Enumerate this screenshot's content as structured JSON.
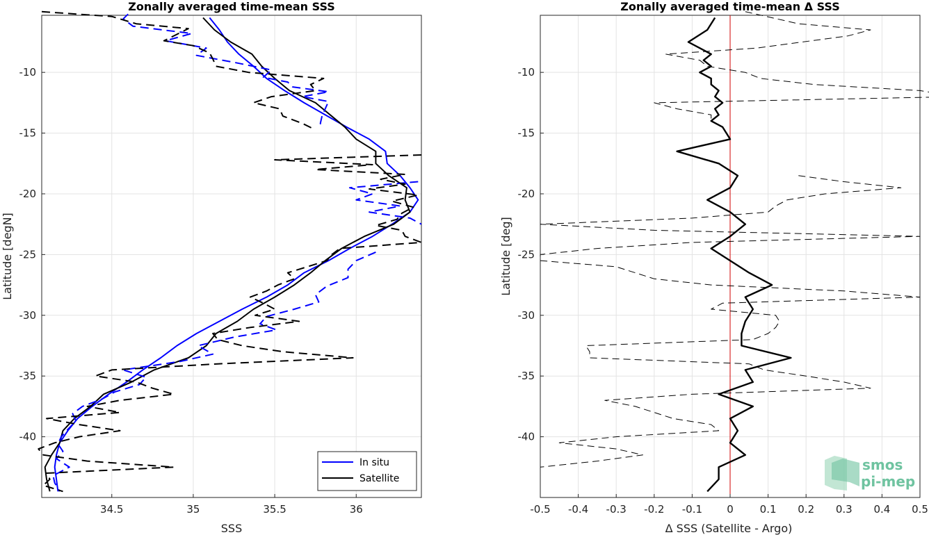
{
  "chart_data": [
    {
      "type": "line",
      "title": "Zonally averaged time-mean SSS",
      "xlabel": "SSS",
      "ylabel": "Latitude [degN]",
      "xlim": [
        34.07,
        36.4
      ],
      "ylim": [
        -45,
        -5.3
      ],
      "xticks": [
        34.5,
        35,
        35.5,
        36
      ],
      "xtick_labels": [
        "34.5",
        "35",
        "35.5",
        "36"
      ],
      "yticks": [
        -10,
        -15,
        -20,
        -25,
        -30,
        -35,
        -40
      ],
      "ytick_labels": [
        "-10",
        "-15",
        "-20",
        "-25",
        "-30",
        "-35",
        "-40"
      ],
      "grid": true,
      "legend": {
        "position": "bottom-right",
        "entries": [
          {
            "label": "In situ",
            "color": "#0000ff"
          },
          {
            "label": "Satellite",
            "color": "#000000"
          }
        ]
      },
      "series": [
        {
          "name": "In situ",
          "style": "solid",
          "color": "#0000ff",
          "lat": [
            -5.5,
            -6.5,
            -7.5,
            -8.5,
            -9.5,
            -10.5,
            -11.5,
            -12.5,
            -13.5,
            -14.5,
            -15.5,
            -16.5,
            -17.5,
            -18.5,
            -19.5,
            -20.5,
            -21.5,
            -22.5,
            -23.5,
            -24.5,
            -25.5,
            -26.5,
            -27.5,
            -28.5,
            -29.5,
            -30.5,
            -31.5,
            -32.5,
            -33.5,
            -34.5,
            -35.5,
            -36.5,
            -37.5,
            -38.5,
            -39.5,
            -40.5,
            -41.5,
            -42.5,
            -43.5,
            -44.5
          ],
          "values": [
            35.1,
            35.16,
            35.21,
            35.28,
            35.37,
            35.45,
            35.56,
            35.68,
            35.81,
            35.94,
            36.08,
            36.18,
            36.19,
            36.27,
            36.33,
            36.38,
            36.33,
            36.22,
            36.1,
            35.96,
            35.83,
            35.68,
            35.58,
            35.45,
            35.3,
            35.16,
            35.02,
            34.9,
            34.8,
            34.69,
            34.59,
            34.48,
            34.38,
            34.29,
            34.23,
            34.18,
            34.16,
            34.15,
            34.16,
            34.17
          ]
        },
        {
          "name": "Satellite",
          "style": "solid",
          "color": "#000000",
          "lat": [
            -5.5,
            -6.5,
            -7.5,
            -8.5,
            -9.5,
            -10.5,
            -11.5,
            -12.5,
            -13.5,
            -14.5,
            -15.5,
            -16.5,
            -17.5,
            -18.5,
            -19.5,
            -20.5,
            -21.5,
            -22.5,
            -23.5,
            -24.5,
            -25.5,
            -26.5,
            -27.5,
            -28.5,
            -29.5,
            -30.5,
            -31.5,
            -32.5,
            -33.5,
            -34.5,
            -35.5,
            -36.5,
            -37.5,
            -38.5,
            -39.5,
            -40.5,
            -41.5,
            -42.5,
            -43.5,
            -44.5
          ],
          "values": [
            35.06,
            35.13,
            35.23,
            35.36,
            35.42,
            35.5,
            35.59,
            35.75,
            35.84,
            35.93,
            36.0,
            36.12,
            36.12,
            36.2,
            36.31,
            36.3,
            36.33,
            36.23,
            36.05,
            35.91,
            35.81,
            35.72,
            35.62,
            35.5,
            35.37,
            35.27,
            35.14,
            35.08,
            34.97,
            34.76,
            34.62,
            34.45,
            34.37,
            34.27,
            34.2,
            34.18,
            34.13,
            34.09,
            34.1,
            34.12
          ]
        },
        {
          "name": "In situ (dashed)",
          "style": "dashed",
          "color": "#0000ff",
          "lat": [
            -5.2,
            -5.6,
            -6.2,
            -6.8,
            -7.4,
            -8.0,
            -8.6,
            -9.2,
            -9.8,
            -10.4,
            -10.8,
            -11.2,
            -11.6,
            -12.0,
            -12.4,
            -13.0,
            -13.6,
            -14.2,
            -14.6
          ],
          "values": [
            34.6,
            34.57,
            34.63,
            34.99,
            34.83,
            35.08,
            35.02,
            35.26,
            35.48,
            35.43,
            35.58,
            35.61,
            35.83,
            35.67,
            35.83,
            35.81,
            35.79,
            35.78,
            35.79
          ]
        },
        {
          "name": "In situ (dashed)",
          "style": "dashed",
          "color": "#0000ff",
          "lat": [
            -19.0,
            -19.5,
            -20.0,
            -20.5,
            -21.0,
            -21.5,
            -22.0,
            -22.5
          ],
          "values": [
            36.38,
            35.96,
            36.1,
            36.0,
            36.27,
            36.08,
            36.33,
            36.4
          ]
        },
        {
          "name": "In situ (dashed)",
          "style": "dashed",
          "color": "#0000ff",
          "lat": [
            -24.8,
            -25.5,
            -26.2,
            -26.9,
            -27.6,
            -28.3,
            -28.9,
            -29.5,
            -30.1,
            -30.7,
            -31.2,
            -31.8,
            -32.5,
            -33.2,
            -33.8,
            -34.5,
            -35.1,
            -35.7,
            -36.3,
            -36.9,
            -37.5,
            -38.1,
            -38.7,
            -39.4,
            -40.0,
            -40.6,
            -41.2,
            -41.8,
            -42.5,
            -43.2,
            -43.8,
            -44.5
          ],
          "values": [
            36.12,
            36.0,
            35.95,
            35.95,
            35.82,
            35.75,
            35.77,
            35.62,
            35.45,
            35.41,
            35.51,
            35.25,
            35.03,
            35.12,
            34.92,
            34.57,
            34.71,
            34.67,
            34.52,
            34.44,
            34.32,
            34.26,
            34.28,
            34.23,
            34.19,
            34.17,
            34.2,
            34.16,
            34.24,
            34.14,
            34.15,
            34.18
          ]
        },
        {
          "name": "Satellite (dashed)",
          "style": "dashed",
          "color": "#000000",
          "lat": [
            -5.0,
            -5.4,
            -6.0,
            -6.4,
            -6.8,
            -7.4,
            -7.8,
            -8.4,
            -8.9,
            -9.5,
            -10.0,
            -10.5,
            -11.0,
            -11.5,
            -12.0,
            -12.5,
            -13.0,
            -13.6,
            -14.2,
            -14.6
          ],
          "values": [
            34.07,
            34.5,
            34.65,
            34.97,
            34.91,
            34.82,
            35.0,
            35.1,
            35.12,
            35.14,
            35.34,
            35.8,
            35.72,
            35.75,
            35.48,
            35.37,
            35.53,
            35.55,
            35.67,
            35.73
          ]
        },
        {
          "name": "Satellite (dashed)",
          "style": "dashed",
          "color": "#000000",
          "lat": [
            -16.8,
            -17.2,
            -17.6,
            -18.0,
            -18.4,
            -18.8,
            -19.2,
            -19.6,
            -20.1,
            -20.6,
            -21.1,
            -21.6,
            -22.1,
            -22.6,
            -23.0,
            -23.5,
            -24.0,
            -24.5,
            -25.0,
            -25.5,
            -26.0,
            -26.5,
            -27.0,
            -27.5,
            -28.0,
            -28.5,
            -29.0,
            -29.5,
            -30.0,
            -30.5,
            -31.0,
            -31.5,
            -32.0,
            -32.5,
            -33.0,
            -33.5,
            -34.0,
            -34.5,
            -35.0,
            -35.5,
            -36.0,
            -36.5,
            -37.0,
            -37.5,
            -38.0,
            -38.5,
            -39.0,
            -39.5,
            -40.0,
            -40.5,
            -41.0,
            -41.5,
            -42.0,
            -42.5,
            -43.0,
            -43.5,
            -44.0,
            -44.5
          ],
          "values": [
            36.4,
            35.5,
            36.1,
            35.75,
            36.3,
            36.15,
            36.3,
            36.08,
            36.38,
            36.22,
            36.35,
            36.28,
            36.25,
            36.12,
            36.28,
            36.3,
            36.4,
            35.9,
            35.85,
            35.82,
            35.7,
            35.58,
            35.62,
            35.52,
            35.45,
            35.35,
            35.43,
            35.5,
            35.38,
            35.65,
            35.35,
            35.12,
            35.15,
            35.3,
            35.55,
            35.98,
            35.15,
            34.5,
            34.4,
            34.65,
            34.75,
            34.88,
            34.55,
            34.35,
            34.55,
            34.1,
            34.3,
            34.55,
            34.3,
            34.15,
            34.05,
            34.08,
            34.35,
            34.88,
            34.1,
            34.12,
            34.08,
            34.2
          ]
        }
      ]
    },
    {
      "type": "line",
      "title": "Zonally averaged time-mean Δ SSS",
      "xlabel": "Δ SSS (Satellite - Argo)",
      "ylabel": "Latitude [deg]",
      "xlim": [
        -0.5,
        0.5
      ],
      "ylim": [
        -45,
        -5.3
      ],
      "xticks": [
        -0.5,
        -0.4,
        -0.3,
        -0.2,
        -0.1,
        0,
        0.1,
        0.2,
        0.3,
        0.4,
        0.5
      ],
      "xtick_labels": [
        "-0.5",
        "-0.4",
        "-0.3",
        "-0.2",
        "-0.1",
        "0",
        "0.1",
        "0.2",
        "0.3",
        "0.4",
        "0.5"
      ],
      "yticks": [
        -10,
        -15,
        -20,
        -25,
        -30,
        -35,
        -40
      ],
      "ytick_labels": [
        "-10",
        "-15",
        "-20",
        "-25",
        "-30",
        "-35",
        "-40"
      ],
      "grid": true,
      "zero_line_color": "#d00000",
      "series": [
        {
          "name": "mean",
          "style": "solid",
          "color": "#000000",
          "lat": [
            -5.5,
            -6.5,
            -7.5,
            -8.0,
            -8.5,
            -9.0,
            -9.5,
            -10.0,
            -10.5,
            -11.0,
            -11.5,
            -12.0,
            -12.5,
            -13.0,
            -13.5,
            -14.0,
            -14.5,
            -15.5,
            -16.5,
            -17.5,
            -18.5,
            -19.5,
            -20.5,
            -21.5,
            -22.5,
            -23.5,
            -24.5,
            -25.5,
            -26.5,
            -27.5,
            -28.5,
            -29.5,
            -30.5,
            -31.5,
            -32.5,
            -33.5,
            -34.5,
            -35.5,
            -36.5,
            -37.5,
            -38.5,
            -39.5,
            -40.5,
            -41.5,
            -42.5,
            -43.5,
            -44.5
          ],
          "values": [
            -0.04,
            -0.06,
            -0.11,
            -0.08,
            -0.05,
            -0.07,
            -0.05,
            -0.08,
            -0.05,
            -0.05,
            -0.03,
            -0.04,
            -0.02,
            -0.04,
            -0.03,
            -0.05,
            -0.02,
            0.0,
            -0.14,
            -0.03,
            0.02,
            0.0,
            -0.06,
            0.0,
            0.04,
            0.0,
            -0.05,
            0.0,
            0.05,
            0.11,
            0.04,
            0.06,
            0.04,
            0.03,
            0.03,
            0.16,
            0.04,
            0.06,
            -0.03,
            0.06,
            0.0,
            0.02,
            0.0,
            0.04,
            -0.03,
            -0.03,
            -0.06
          ]
        },
        {
          "name": "std",
          "style": "dashed",
          "color": "#000000",
          "lat": [
            -5.0,
            -6.0,
            -6.5,
            -7.0,
            -8.0,
            -8.5,
            -9.0,
            -9.5,
            -10.0,
            -10.5,
            -11.0,
            -11.5,
            -12.0,
            -12.5,
            -13.0,
            -13.5,
            -14.0
          ],
          "values": [
            0.04,
            0.18,
            0.37,
            0.31,
            0.07,
            -0.17,
            -0.08,
            -0.06,
            0.04,
            0.08,
            0.22,
            0.5,
            0.6,
            -0.2,
            -0.14,
            -0.05,
            -0.05
          ]
        },
        {
          "name": "std",
          "style": "dashed",
          "color": "#000000",
          "lat": [
            -18.5,
            -19.0,
            -19.5,
            -20.0,
            -20.5,
            -21.0,
            -21.5,
            -22.0,
            -22.5,
            -23.0,
            -23.5,
            -24.0,
            -24.5,
            -25.0,
            -25.5,
            -26.0,
            -26.5,
            -27.0,
            -27.5,
            -28.0,
            -28.5,
            -29.0,
            -29.5,
            -30.0,
            -30.5,
            -31.0,
            -31.5,
            -32.0,
            -32.5,
            -33.0,
            -33.5,
            -34.0,
            -34.5,
            -35.0,
            -35.5,
            -36.0,
            -36.5,
            -37.0,
            -37.5,
            -38.0,
            -38.5,
            -39.0,
            -39.5,
            -40.0,
            -40.5,
            -41.0,
            -41.5,
            -42.0,
            -42.5
          ],
          "values": [
            0.18,
            0.3,
            0.45,
            0.25,
            0.15,
            0.12,
            0.1,
            -0.1,
            -0.5,
            -0.2,
            0.5,
            -0.1,
            -0.35,
            -0.5,
            -0.5,
            -0.3,
            -0.25,
            -0.2,
            -0.05,
            0.3,
            0.5,
            -0.02,
            -0.05,
            0.12,
            0.13,
            0.12,
            0.1,
            0.06,
            -0.38,
            -0.37,
            -0.37,
            0.05,
            0.09,
            0.2,
            0.3,
            0.37,
            -0.1,
            -0.33,
            -0.25,
            -0.2,
            -0.15,
            -0.05,
            -0.03,
            -0.3,
            -0.45,
            -0.3,
            -0.23,
            -0.35,
            -0.5
          ]
        }
      ]
    }
  ],
  "legend": {
    "in_situ_label": "In situ",
    "satellite_label": "Satellite"
  },
  "logo": {
    "line1": "smos",
    "line2": "pi-mep"
  },
  "colors": {
    "blue": "#0000ff",
    "black": "#000000",
    "red": "#d00000",
    "grid": "#e3e3e3",
    "logo": "#6fc3a0"
  }
}
